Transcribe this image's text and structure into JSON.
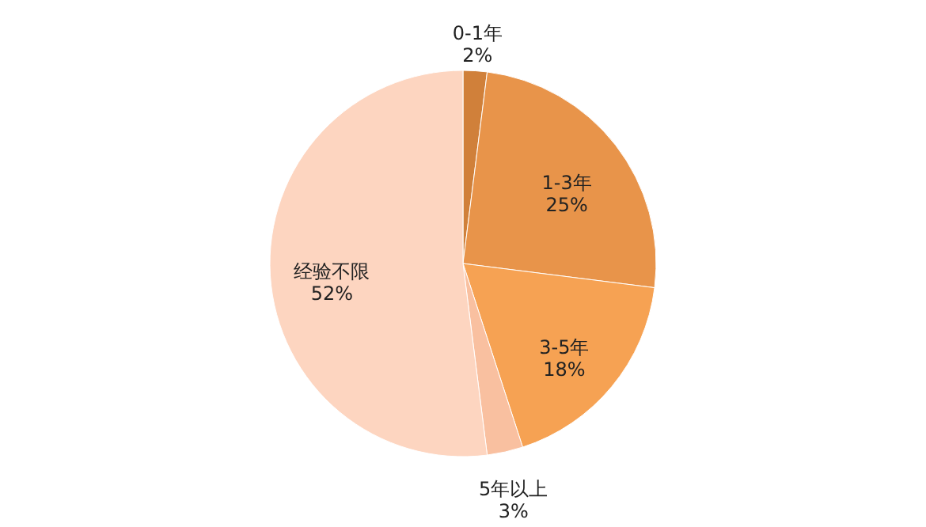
{
  "chart_data": {
    "type": "pie",
    "categories": [
      "0-1年",
      "1-3年",
      "3-5年",
      "5年以上",
      "经验不限"
    ],
    "values": [
      2,
      25,
      18,
      3,
      52
    ],
    "value_labels": [
      "2%",
      "25%",
      "18%",
      "3%",
      "52%"
    ],
    "colors": [
      "#d0803a",
      "#e8944a",
      "#f6a253",
      "#f9c0a0",
      "#fdd5c0"
    ],
    "legend": false
  }
}
